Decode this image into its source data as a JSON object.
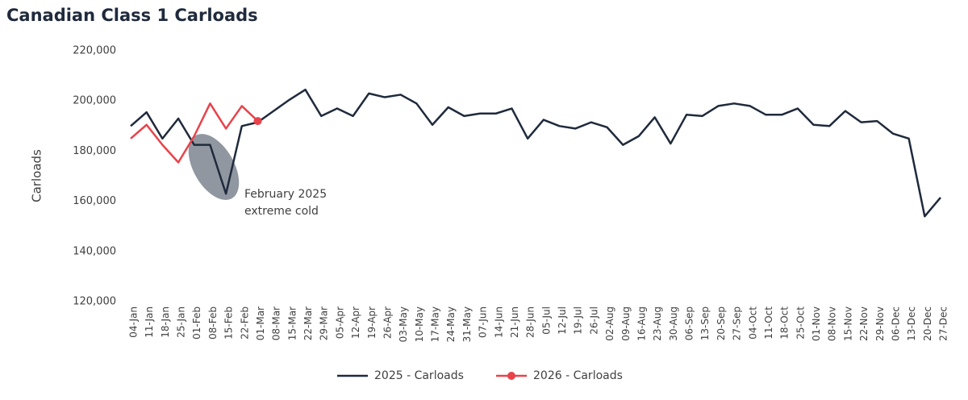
{
  "chart_data": {
    "type": "line",
    "title": "Canadian Class 1 Carloads",
    "y_label": "Carloads",
    "categories": [
      "04-Jan",
      "11-Jan",
      "18-Jan",
      "25-Jan",
      "01-Feb",
      "08-Feb",
      "15-Feb",
      "22-Feb",
      "01-Mar",
      "08-Mar",
      "15-Mar",
      "22-Mar",
      "29-Mar",
      "05-Apr",
      "12-Apr",
      "19-Apr",
      "26-Apr",
      "03-May",
      "10-May",
      "17-May",
      "24-May",
      "31-May",
      "07-Jun",
      "14-Jun",
      "21-Jun",
      "28-Jun",
      "05-Jul",
      "12-Jul",
      "19-Jul",
      "26-Jul",
      "02-Aug",
      "09-Aug",
      "16-Aug",
      "23-Aug",
      "30-Aug",
      "06-Sep",
      "13-Sep",
      "20-Sep",
      "27-Sep",
      "04-Oct",
      "11-Oct",
      "18-Oct",
      "25-Oct",
      "01-Nov",
      "08-Nov",
      "15-Nov",
      "22-Nov",
      "29-Nov",
      "06-Dec",
      "13-Dec",
      "20-Dec",
      "27-Dec"
    ],
    "series": [
      {
        "name": "2025 - Carloads",
        "color": "#1f2a3c",
        "marker": "none",
        "values": [
          190000,
          195500,
          185000,
          193000,
          182500,
          182500,
          163000,
          190000,
          191500,
          196000,
          200500,
          204500,
          194000,
          197000,
          194000,
          203000,
          201500,
          202500,
          199000,
          190500,
          197500,
          194000,
          195000,
          195000,
          197000,
          185000,
          192500,
          190000,
          189000,
          191500,
          189500,
          182500,
          186000,
          193500,
          183000,
          194500,
          194000,
          198000,
          199000,
          198000,
          194500,
          194500,
          197000,
          190500,
          190000,
          196000,
          191500,
          192000,
          187000,
          185000,
          154000,
          161500
        ]
      },
      {
        "name": "2026 - Carloads",
        "color": "#e8434b",
        "marker": "last",
        "values": [
          185000,
          190500,
          182500,
          175500,
          186000,
          199000,
          189000,
          198000,
          192000,
          null,
          null,
          null,
          null,
          null,
          null,
          null,
          null,
          null,
          null,
          null,
          null,
          null,
          null,
          null,
          null,
          null,
          null,
          null,
          null,
          null,
          null,
          null,
          null,
          null,
          null,
          null,
          null,
          null,
          null,
          null,
          null,
          null,
          null,
          null,
          null,
          null,
          null,
          null,
          null,
          null,
          null,
          null
        ]
      }
    ],
    "ylim": [
      120000,
      220000
    ],
    "yticks": [
      {
        "value": 120000,
        "label": "120,000"
      },
      {
        "value": 140000,
        "label": "140,000"
      },
      {
        "value": 160000,
        "label": "160,000"
      },
      {
        "value": 180000,
        "label": "180,000"
      },
      {
        "value": 200000,
        "label": "200,000"
      },
      {
        "value": 220000,
        "label": "220,000"
      }
    ],
    "grid": false,
    "legend": "bottom",
    "annotation": [
      "February 2025",
      "extreme cold"
    ]
  }
}
